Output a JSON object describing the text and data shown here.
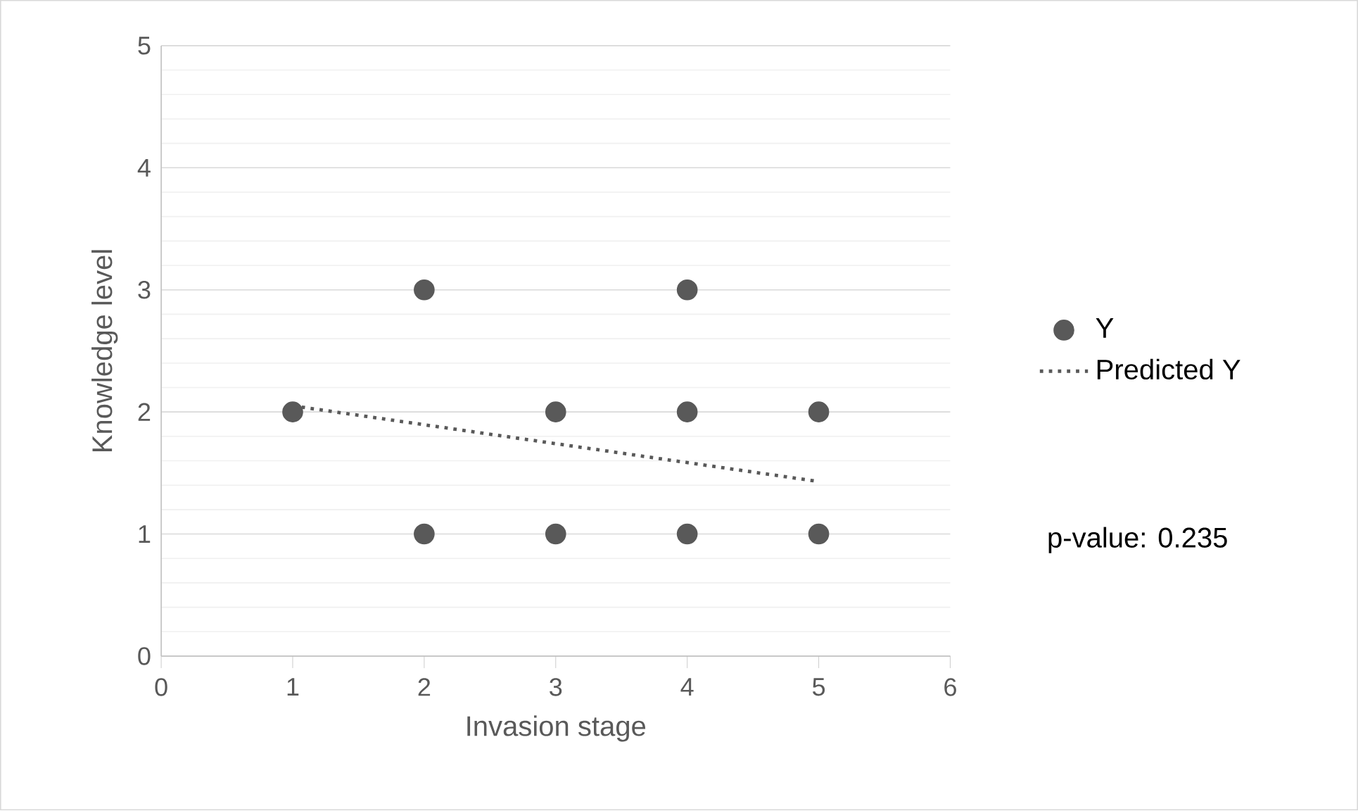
{
  "chart_data": {
    "type": "scatter",
    "xlabel": "Invasion stage",
    "ylabel": "Knowledge level",
    "xlim": [
      0,
      6
    ],
    "xticks": [
      0,
      1,
      2,
      3,
      4,
      5,
      6
    ],
    "ylim": [
      0,
      5
    ],
    "yticks": [
      0,
      1,
      2,
      3,
      4,
      5
    ],
    "grid": "y",
    "legend": "right",
    "series": [
      {
        "name": "Y",
        "marker": "circle",
        "color": "#595959",
        "x": [
          1,
          2,
          2,
          3,
          3,
          4,
          4,
          4,
          5,
          5
        ],
        "values": [
          2,
          3,
          1,
          2,
          1,
          3,
          2,
          1,
          2,
          1
        ]
      },
      {
        "name": "Predicted Y",
        "type": "line",
        "marker": "none",
        "line_style": "dotted",
        "color": "#595959",
        "x": [
          1,
          5
        ],
        "values": [
          2.05,
          1.43
        ]
      }
    ],
    "annotations": [
      "p-value: 0.235"
    ]
  }
}
